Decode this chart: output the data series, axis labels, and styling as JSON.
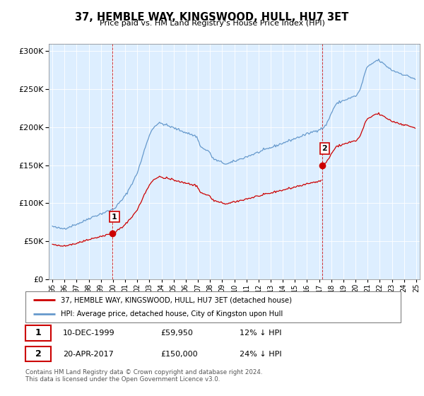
{
  "title": "37, HEMBLE WAY, KINGSWOOD, HULL, HU7 3ET",
  "subtitle": "Price paid vs. HM Land Registry's House Price Index (HPI)",
  "legend_line1": "37, HEMBLE WAY, KINGSWOOD, HULL, HU7 3ET (detached house)",
  "legend_line2": "HPI: Average price, detached house, City of Kingston upon Hull",
  "annotation1_date": "10-DEC-1999",
  "annotation1_price": "£59,950",
  "annotation1_hpi": "12% ↓ HPI",
  "annotation2_date": "20-APR-2017",
  "annotation2_price": "£150,000",
  "annotation2_hpi": "24% ↓ HPI",
  "footer": "Contains HM Land Registry data © Crown copyright and database right 2024.\nThis data is licensed under the Open Government Licence v3.0.",
  "red_color": "#cc0000",
  "blue_color": "#6699cc",
  "bg_color": "#ddeeff",
  "sale1_x": 1999.92,
  "sale1_y": 59950,
  "sale2_x": 2017.25,
  "sale2_y": 150000,
  "ylim": [
    0,
    310000
  ],
  "xlim_start": 1994.7,
  "xlim_end": 2025.3,
  "xtick_years": [
    1995,
    1996,
    1997,
    1998,
    1999,
    2000,
    2001,
    2002,
    2003,
    2004,
    2005,
    2006,
    2007,
    2008,
    2009,
    2010,
    2011,
    2012,
    2013,
    2014,
    2015,
    2016,
    2017,
    2018,
    2019,
    2020,
    2021,
    2022,
    2023,
    2024,
    2025
  ],
  "ytick_values": [
    0,
    50000,
    100000,
    150000,
    200000,
    250000,
    300000
  ],
  "hpi_monthly": [
    69500,
    69000,
    68500,
    68000,
    67800,
    67500,
    67200,
    67000,
    66800,
    66700,
    66600,
    66800,
    67000,
    67200,
    67500,
    68000,
    68500,
    69000,
    69500,
    70000,
    70500,
    71000,
    71500,
    72000,
    72500,
    73000,
    73500,
    74000,
    74500,
    75000,
    75500,
    76200,
    77000,
    77800,
    78500,
    79200,
    80000,
    80500,
    81000,
    81500,
    82000,
    82500,
    83000,
    83500,
    84000,
    84500,
    85000,
    85500,
    86000,
    86500,
    87000,
    87500,
    88000,
    88500,
    89000,
    89500,
    90000,
    90500,
    91000,
    91500,
    92000,
    93000,
    94000,
    95500,
    97000,
    98500,
    100000,
    101500,
    103000,
    104500,
    106000,
    108000,
    110000,
    112000,
    114000,
    116500,
    119000,
    121500,
    124000,
    126500,
    129000,
    131500,
    134000,
    137000,
    140000,
    144000,
    148000,
    152000,
    156000,
    160500,
    165000,
    169500,
    174000,
    178000,
    182000,
    186000,
    189000,
    192000,
    195000,
    197500,
    199500,
    201000,
    202000,
    203000,
    204000,
    204500,
    205000,
    205000,
    205000,
    204500,
    204000,
    203500,
    203000,
    202500,
    202000,
    201500,
    201000,
    200500,
    200000,
    199500,
    199000,
    198500,
    198000,
    197500,
    197000,
    196500,
    196000,
    195500,
    195000,
    194500,
    194000,
    193500,
    193000,
    192500,
    192000,
    191500,
    191000,
    190500,
    190000,
    189500,
    189000,
    188500,
    188000,
    187500,
    183000,
    180000,
    177000,
    175000,
    173000,
    172000,
    171000,
    170500,
    170000,
    169500,
    169000,
    168500,
    165000,
    163000,
    161000,
    159500,
    158000,
    157000,
    156500,
    156000,
    155500,
    155000,
    154500,
    154000,
    153500,
    153000,
    152500,
    152000,
    151500,
    151500,
    152000,
    152500,
    153000,
    153500,
    154000,
    154500,
    155000,
    155500,
    156000,
    156500,
    157000,
    157500,
    158000,
    158500,
    159000,
    159500,
    160000,
    160500,
    161000,
    161500,
    162000,
    162500,
    163000,
    163500,
    164000,
    164500,
    165000,
    165500,
    166000,
    166500,
    167000,
    167500,
    168000,
    168500,
    169000,
    169500,
    170000,
    170500,
    171000,
    171500,
    172000,
    172500,
    173000,
    173500,
    174000,
    174500,
    175000,
    175500,
    176000,
    176500,
    177000,
    177500,
    178000,
    178500,
    179000,
    179500,
    180000,
    180500,
    181000,
    181500,
    182000,
    182500,
    183000,
    183500,
    184000,
    184500,
    185000,
    185500,
    186000,
    186500,
    187000,
    187500,
    188000,
    188500,
    189000,
    189500,
    190000,
    190500,
    191000,
    191500,
    192000,
    192500,
    193000,
    193500,
    194000,
    194500,
    195000,
    195500,
    196000,
    196500,
    197000,
    197500,
    198000,
    198500,
    199000,
    200000,
    201500,
    203500,
    206000,
    209000,
    212000,
    215000,
    218000,
    221000,
    224000,
    226500,
    228500,
    230000,
    231000,
    232000,
    233000,
    233500,
    234000,
    234500,
    235000,
    235500,
    236000,
    236500,
    237000,
    237500,
    238000,
    238500,
    239000,
    239500,
    240000,
    240500,
    241000,
    242000,
    243500,
    245500,
    248000,
    251000,
    255000,
    260000,
    265000,
    270000,
    274000,
    277000,
    279000,
    280000,
    281000,
    282000,
    283000,
    284000,
    285000,
    286000,
    287000,
    287500,
    288000,
    288000,
    287000,
    286000,
    285000,
    284000,
    283000,
    282000,
    281000,
    280000,
    279000,
    278000,
    277000,
    276000,
    275000,
    274500,
    274000,
    273500,
    273000,
    272500,
    272000,
    271500,
    271000,
    270500,
    270000,
    269500,
    269000,
    268500,
    268000,
    267500,
    267000,
    266500,
    266000,
    265500,
    265000,
    264500,
    264000,
    263500
  ]
}
